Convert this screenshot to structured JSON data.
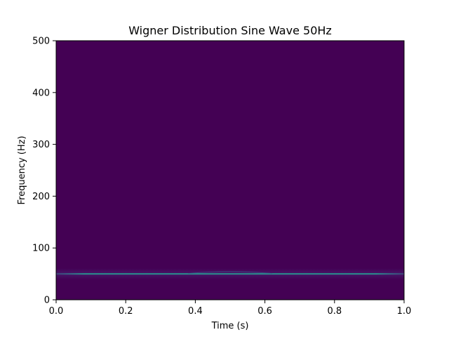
{
  "chart_data": {
    "type": "heatmap",
    "title": "Wigner Distribution Sine Wave 50Hz",
    "xlabel": "Time (s)",
    "ylabel": "Frequency (Hz)",
    "xlim": [
      0.0,
      1.0
    ],
    "ylim": [
      0,
      500
    ],
    "x_ticks": [
      0.0,
      0.2,
      0.4,
      0.6,
      0.8,
      1.0
    ],
    "x_tick_labels": [
      "0.0",
      "0.2",
      "0.4",
      "0.6",
      "0.8",
      "1.0"
    ],
    "y_ticks": [
      0,
      100,
      200,
      300,
      400,
      500
    ],
    "y_tick_labels": [
      "0",
      "100",
      "200",
      "300",
      "400",
      "500"
    ],
    "grid": false,
    "colormap": "viridis",
    "background_color": "#440154",
    "ridge": {
      "frequency_hz": 50,
      "time_range": [
        0.0,
        1.0
      ],
      "color": "#2a8c8c"
    }
  }
}
